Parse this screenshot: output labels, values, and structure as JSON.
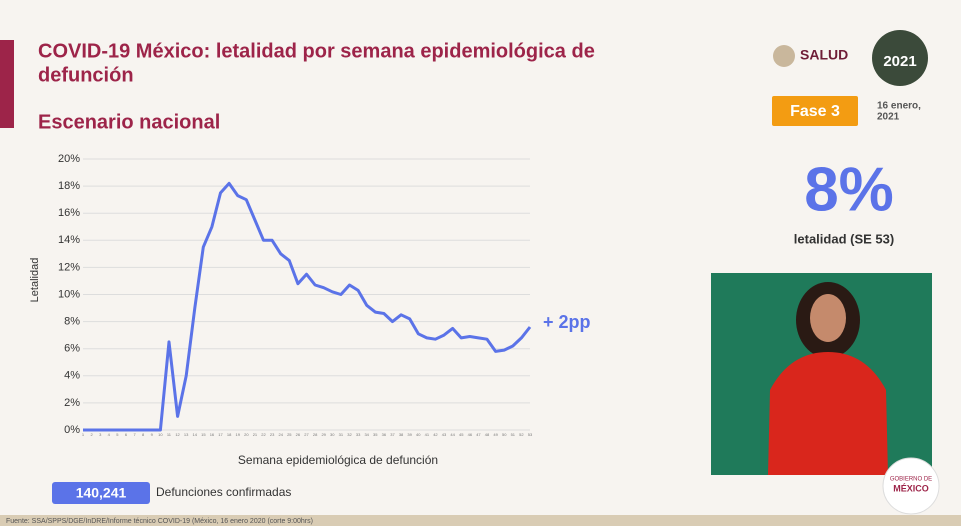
{
  "header": {
    "title_lines": [
      "COVID-19 México: letalidad por semana epidemiológica de",
      "defunción"
    ],
    "subtitle": "Escenario nacional",
    "logo_text": "SALUD",
    "year_logo": "2021",
    "phase": "Fase 3",
    "date_lines": [
      "16 enero,",
      "2021"
    ]
  },
  "stat": {
    "value": "8%",
    "label": "letalidad (SE 53)"
  },
  "chart_data": {
    "type": "line",
    "y_label": "Letalidad",
    "x_label": "Semana epidemiológica de defunción",
    "annotation": "+ 2pp",
    "x": [
      1,
      2,
      3,
      4,
      5,
      6,
      7,
      8,
      9,
      10,
      11,
      12,
      13,
      14,
      15,
      16,
      17,
      18,
      19,
      20,
      21,
      22,
      23,
      24,
      25,
      26,
      27,
      28,
      29,
      30,
      31,
      32,
      33,
      34,
      35,
      36,
      37,
      38,
      39,
      40,
      41,
      42,
      43,
      44,
      45,
      46,
      47,
      48,
      49,
      50,
      51,
      52,
      53
    ],
    "xlim": [
      1,
      53
    ],
    "ylim": [
      0,
      20
    ],
    "yticks": [
      {
        "value": 0,
        "label": "0%"
      },
      {
        "value": 2,
        "label": "2%"
      },
      {
        "value": 4,
        "label": "4%"
      },
      {
        "value": 6,
        "label": "6%"
      },
      {
        "value": 8,
        "label": "8%"
      },
      {
        "value": 10,
        "label": "10%"
      },
      {
        "value": 12,
        "label": "12%"
      },
      {
        "value": 14,
        "label": "14%"
      },
      {
        "value": 16,
        "label": "16%"
      },
      {
        "value": 18,
        "label": "18%"
      },
      {
        "value": 20,
        "label": "20%"
      }
    ],
    "grid": true,
    "series": [
      {
        "name": "Letalidad",
        "color": "#5b73e8",
        "values": [
          0,
          0,
          0,
          0,
          0,
          0,
          0,
          0,
          0,
          0,
          6.5,
          1,
          4,
          9,
          13.5,
          15,
          17.5,
          18.2,
          17.3,
          17,
          15.5,
          14,
          14,
          13,
          12.5,
          10.8,
          11.5,
          10.7,
          10.5,
          10.2,
          10,
          10.7,
          10.3,
          9.2,
          8.7,
          8.6,
          8,
          8.5,
          8.2,
          7.1,
          6.8,
          6.7,
          7,
          7.5,
          6.8,
          6.9,
          6.8,
          6.7,
          5.8,
          5.9,
          6.2,
          6.8,
          7.6
        ]
      }
    ]
  },
  "footer": {
    "deaths_value": "140,241",
    "deaths_label": "Defunciones confirmadas",
    "source": "Fuente: SSA/SPPS/DGE/InDRE/Informe técnico COVID-19 (México, 16 enero 2020 (corte 9:00hrs)"
  },
  "badge_lines": [
    "GOBIERNO DE",
    "MÉXICO"
  ]
}
